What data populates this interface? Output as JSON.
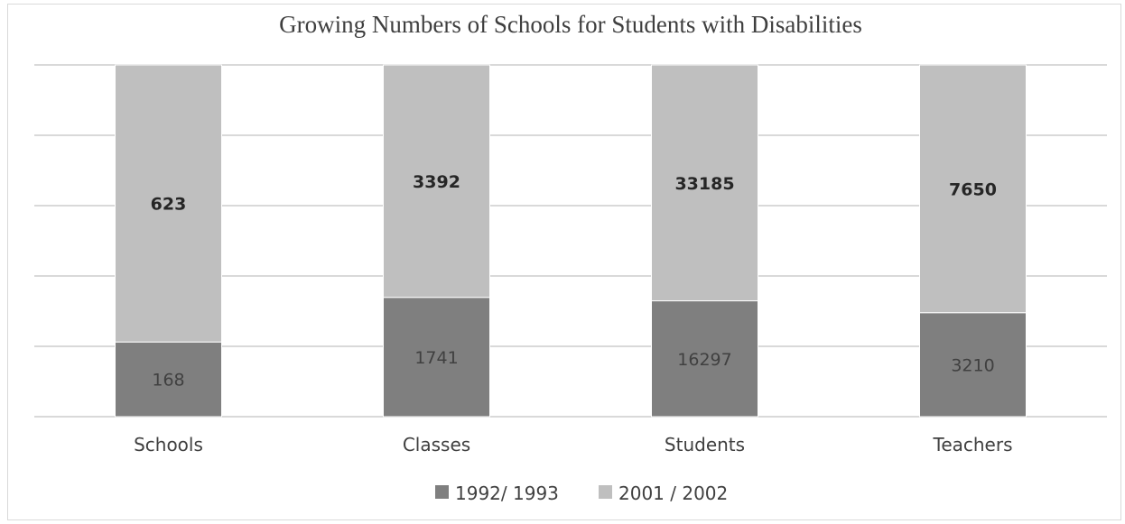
{
  "chart_data": {
    "type": "bar",
    "stacked": "100%",
    "title": "Growing Numbers of Schools for Students with Disabilities",
    "categories": [
      "Schools",
      "Classes",
      "Students",
      "Teachers"
    ],
    "series": [
      {
        "name": "1992/ 1993",
        "values": [
          168,
          1741,
          16297,
          3210
        ],
        "color": "#7f7f7f"
      },
      {
        "name": "2001 / 2002",
        "values": [
          623,
          3392,
          33185,
          7650
        ],
        "color": "#bfbfbf"
      }
    ],
    "grid": true,
    "legend": "bottom",
    "gridline_color": "#d9d9d9"
  }
}
